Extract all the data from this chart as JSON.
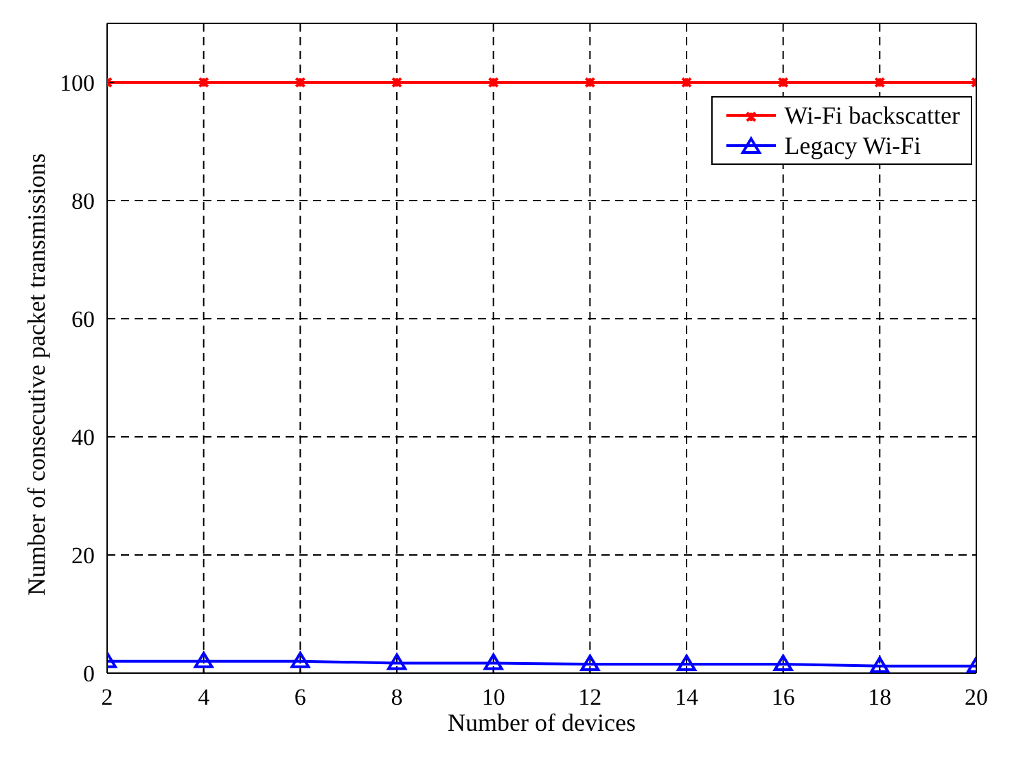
{
  "chart_data": {
    "type": "line",
    "xlabel": "Number of devices",
    "ylabel": "Number of consecutive packet transmissions",
    "x": [
      2,
      4,
      6,
      8,
      10,
      12,
      14,
      16,
      18,
      20
    ],
    "series": [
      {
        "name": "Wi-Fi backscatter",
        "color": "#ff0000",
        "marker": "cross",
        "values": [
          100,
          100,
          100,
          100,
          100,
          100,
          100,
          100,
          100,
          100
        ]
      },
      {
        "name": "Legacy Wi-Fi",
        "color": "#0000ff",
        "marker": "triangle",
        "values": [
          2,
          2,
          2,
          1.7,
          1.7,
          1.5,
          1.5,
          1.5,
          1.2,
          1.2
        ]
      }
    ],
    "xlim": [
      2,
      20
    ],
    "xticks": [
      2,
      4,
      6,
      8,
      10,
      12,
      14,
      16,
      18,
      20
    ],
    "ylim": [
      0,
      110
    ],
    "yticks": [
      0,
      20,
      40,
      60,
      80,
      100
    ],
    "grid": true,
    "legend": "top right"
  }
}
